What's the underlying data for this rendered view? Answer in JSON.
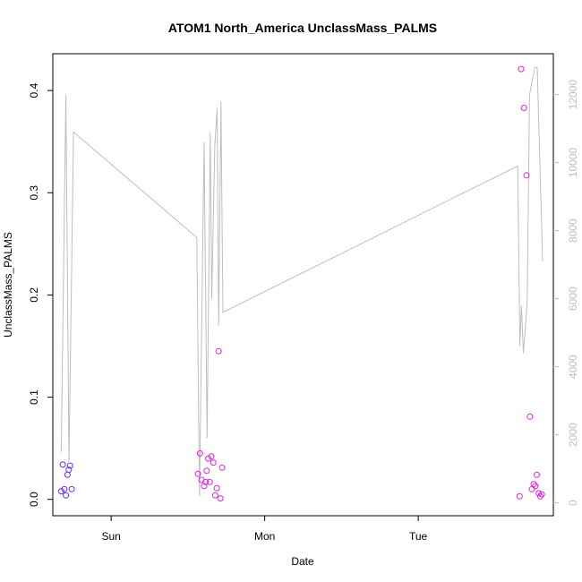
{
  "chart_data": {
    "type": "scatter",
    "title": "ATOM1 North_America UnclassMass_PALMS",
    "xlabel": "Date",
    "ylabel": "UnclassMass_PALMS",
    "x_unit": "days",
    "xlim": [
      -0.38,
      2.88
    ],
    "ylim": [
      -0.016,
      0.436
    ],
    "y2lim": [
      -380,
      13200
    ],
    "x_ticks": [
      {
        "value": 0,
        "label": "Sun"
      },
      {
        "value": 1,
        "label": "Mon"
      },
      {
        "value": 2,
        "label": "Tue"
      }
    ],
    "y_ticks": [
      {
        "value": 0.0,
        "label": "0.0"
      },
      {
        "value": 0.1,
        "label": "0.1"
      },
      {
        "value": 0.2,
        "label": "0.2"
      },
      {
        "value": 0.3,
        "label": "0.3"
      },
      {
        "value": 0.4,
        "label": "0.4"
      }
    ],
    "y2_ticks": [
      {
        "value": 0,
        "label": "0"
      },
      {
        "value": 2000,
        "label": "2000"
      },
      {
        "value": 4000,
        "label": "4000"
      },
      {
        "value": 6000,
        "label": "6000"
      },
      {
        "value": 8000,
        "label": "8000"
      },
      {
        "value": 10000,
        "label": "10000"
      },
      {
        "value": 12000,
        "label": "12000"
      }
    ],
    "colors": {
      "line": "#bebebe",
      "axis": "#000000",
      "right_axis": "#bebebe"
    },
    "series": [
      {
        "type": "scatter",
        "points": [
          {
            "x": -0.325,
            "y": 0.008,
            "color": "#6a2bff"
          },
          {
            "x": -0.315,
            "y": 0.034,
            "color": "#6a2bff"
          },
          {
            "x": -0.305,
            "y": 0.01,
            "color": "#6a2bff"
          },
          {
            "x": -0.295,
            "y": 0.004,
            "color": "#6a2bff"
          },
          {
            "x": -0.285,
            "y": 0.024,
            "color": "#6a2bff"
          },
          {
            "x": -0.276,
            "y": 0.029,
            "color": "#6a2bff"
          },
          {
            "x": -0.268,
            "y": 0.033,
            "color": "#6a2bff"
          },
          {
            "x": -0.257,
            "y": 0.01,
            "color": "#6a2bff"
          },
          {
            "x": 0.565,
            "y": 0.025,
            "color": "#e020e0"
          },
          {
            "x": 0.578,
            "y": 0.045,
            "color": "#e020e0"
          },
          {
            "x": 0.588,
            "y": 0.019,
            "color": "#e020e0"
          },
          {
            "x": 0.605,
            "y": 0.013,
            "color": "#e020e0"
          },
          {
            "x": 0.615,
            "y": 0.017,
            "color": "#e020e0"
          },
          {
            "x": 0.622,
            "y": 0.028,
            "color": "#e020e0"
          },
          {
            "x": 0.632,
            "y": 0.04,
            "color": "#e020e0"
          },
          {
            "x": 0.642,
            "y": 0.017,
            "color": "#e020e0"
          },
          {
            "x": 0.652,
            "y": 0.042,
            "color": "#e020e0"
          },
          {
            "x": 0.665,
            "y": 0.036,
            "color": "#e020e0"
          },
          {
            "x": 0.678,
            "y": 0.004,
            "color": "#e020e0"
          },
          {
            "x": 0.688,
            "y": 0.011,
            "color": "#e020e0"
          },
          {
            "x": 0.7,
            "y": 0.145,
            "color": "#e020e0"
          },
          {
            "x": 0.712,
            "y": 0.001,
            "color": "#e020e0"
          },
          {
            "x": 0.722,
            "y": 0.031,
            "color": "#e020e0"
          },
          {
            "x": 2.66,
            "y": 0.003,
            "color": "#e020e0"
          },
          {
            "x": 2.67,
            "y": 0.421,
            "color": "#e020e0"
          },
          {
            "x": 2.688,
            "y": 0.383,
            "color": "#e020e0"
          },
          {
            "x": 2.705,
            "y": 0.317,
            "color": "#e020e0"
          },
          {
            "x": 2.727,
            "y": 0.081,
            "color": "#e020e0"
          },
          {
            "x": 2.74,
            "y": 0.01,
            "color": "#e020e0"
          },
          {
            "x": 2.752,
            "y": 0.015,
            "color": "#e020e0"
          },
          {
            "x": 2.762,
            "y": 0.013,
            "color": "#e020e0"
          },
          {
            "x": 2.772,
            "y": 0.024,
            "color": "#e020e0"
          },
          {
            "x": 2.785,
            "y": 0.006,
            "color": "#e020e0"
          },
          {
            "x": 2.795,
            "y": 0.003,
            "color": "#e020e0"
          },
          {
            "x": 2.805,
            "y": 0.005,
            "color": "#e020e0"
          }
        ]
      },
      {
        "type": "line",
        "axis": "right",
        "points": [
          {
            "x": -0.325,
            "y": 1500
          },
          {
            "x": -0.295,
            "y": 12000
          },
          {
            "x": -0.275,
            "y": 1200
          },
          {
            "x": -0.245,
            "y": 10900
          },
          {
            "x": 0.558,
            "y": 7800
          },
          {
            "x": 0.575,
            "y": 200
          },
          {
            "x": 0.605,
            "y": 10600
          },
          {
            "x": 0.625,
            "y": 1900
          },
          {
            "x": 0.645,
            "y": 10900
          },
          {
            "x": 0.655,
            "y": 6000
          },
          {
            "x": 0.675,
            "y": 10500
          },
          {
            "x": 0.69,
            "y": 11600
          },
          {
            "x": 0.7,
            "y": 5200
          },
          {
            "x": 0.715,
            "y": 11800
          },
          {
            "x": 0.728,
            "y": 5600
          },
          {
            "x": 2.648,
            "y": 9900
          },
          {
            "x": 2.662,
            "y": 4600
          },
          {
            "x": 2.672,
            "y": 5800
          },
          {
            "x": 2.685,
            "y": 4400
          },
          {
            "x": 2.71,
            "y": 5900
          },
          {
            "x": 2.725,
            "y": 12000
          },
          {
            "x": 2.76,
            "y": 12800
          },
          {
            "x": 2.775,
            "y": 12800
          },
          {
            "x": 2.81,
            "y": 7100
          }
        ]
      }
    ]
  }
}
